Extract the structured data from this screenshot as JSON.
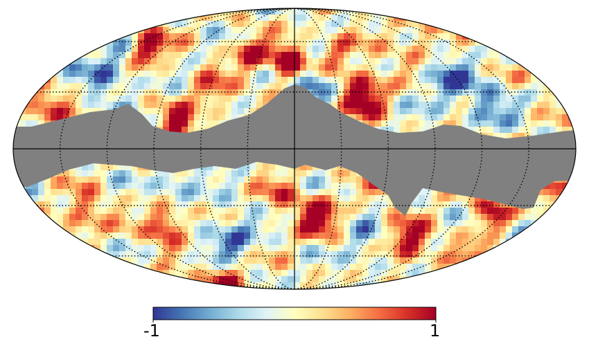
{
  "map": {
    "projection": "mollweide",
    "masked_color": "#808080",
    "graticule": {
      "style": "dotted",
      "color": "#000000"
    }
  },
  "colorbar": {
    "min_label": "-1",
    "max_label": "1",
    "range": [
      -1,
      1
    ],
    "colormap": "RdYlBu_r",
    "stops": [
      "#313695",
      "#4575b4",
      "#74add1",
      "#abd9e9",
      "#e0f3f8",
      "#ffffbf",
      "#fee090",
      "#fdae61",
      "#f46d43",
      "#d73027",
      "#a50026"
    ]
  }
}
